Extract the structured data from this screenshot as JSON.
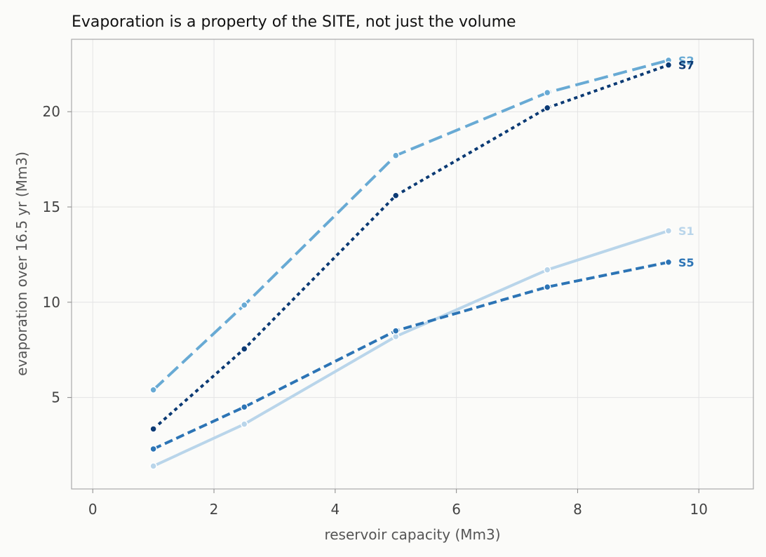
{
  "chart_data": {
    "type": "line",
    "title": "Evaporation is a property of the SITE, not just the volume",
    "xlabel": "reservoir capacity (Mm3)",
    "ylabel": "evaporation over 16.5 yr (Mm3)",
    "xlim": [
      -0.35,
      10.9
    ],
    "ylim": [
      0.2,
      23.8
    ],
    "xticks": [
      0,
      2,
      4,
      6,
      8,
      10
    ],
    "yticks": [
      5,
      10,
      15,
      20
    ],
    "grid": true,
    "x": [
      1,
      2.5,
      5,
      7.5,
      9.5
    ],
    "series": [
      {
        "name": "S1",
        "color": "#b9d5ea",
        "style": "solid",
        "values": [
          1.4,
          3.6,
          8.2,
          11.7,
          13.75
        ]
      },
      {
        "name": "S5",
        "color": "#2c74b5",
        "style": "dashed",
        "values": [
          2.3,
          4.5,
          8.5,
          10.8,
          12.1
        ]
      },
      {
        "name": "S2",
        "color": "#68aad4",
        "style": "longdash",
        "values": [
          5.4,
          9.85,
          17.7,
          21.0,
          22.7
        ]
      },
      {
        "name": "S7",
        "color": "#0b3a74",
        "style": "dotted",
        "values": [
          3.35,
          7.55,
          15.6,
          20.2,
          22.45
        ]
      }
    ]
  }
}
